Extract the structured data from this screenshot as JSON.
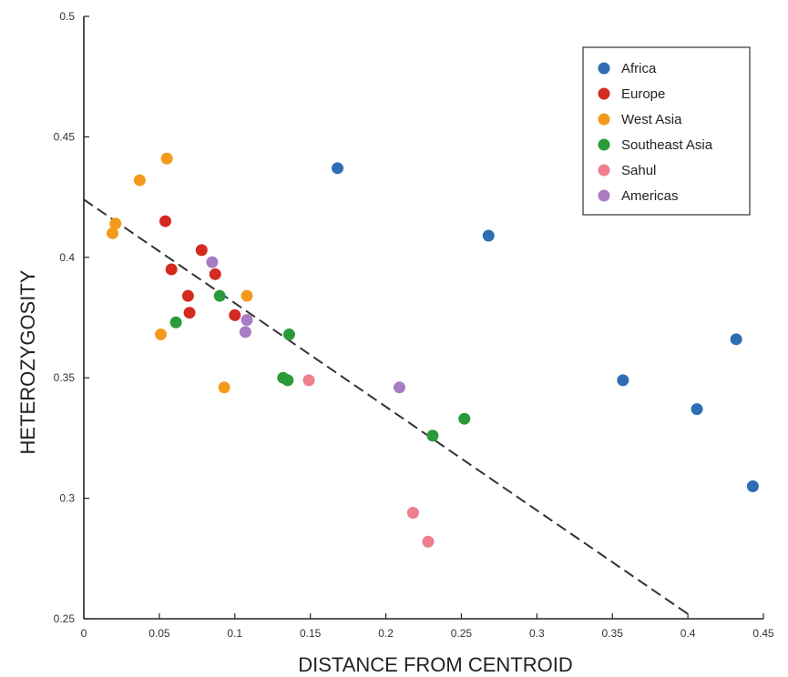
{
  "chart_data": {
    "type": "scatter",
    "xlabel": "DISTANCE FROM CENTROID",
    "ylabel": "HETEROZYGOSITY",
    "xlim": [
      0,
      0.45
    ],
    "ylim": [
      0.25,
      0.5
    ],
    "x_ticks": [
      {
        "value": 0,
        "label": "0"
      },
      {
        "value": 0.05,
        "label": "0.05"
      },
      {
        "value": 0.1,
        "label": "0.1"
      },
      {
        "value": 0.15,
        "label": "0.15"
      },
      {
        "value": 0.2,
        "label": "0.2"
      },
      {
        "value": 0.25,
        "label": "0.25"
      },
      {
        "value": 0.3,
        "label": "0.3"
      },
      {
        "value": 0.35,
        "label": "0.35"
      },
      {
        "value": 0.4,
        "label": "0.4"
      },
      {
        "value": 0.45,
        "label": "0.45"
      }
    ],
    "y_ticks": [
      {
        "value": 0.25,
        "label": "0.25"
      },
      {
        "value": 0.3,
        "label": "0.3"
      },
      {
        "value": 0.35,
        "label": "0.35"
      },
      {
        "value": 0.4,
        "label": "0.4"
      },
      {
        "value": 0.45,
        "label": "0.45"
      },
      {
        "value": 0.5,
        "label": "0.5"
      }
    ],
    "grid": false,
    "legend_position": "top-right",
    "trendline": {
      "style": "dashed",
      "points": [
        [
          0,
          0.424
        ],
        [
          0.4,
          0.252
        ]
      ]
    },
    "series": [
      {
        "name": "Africa",
        "color": "#2e6db4",
        "points": [
          [
            0.168,
            0.437
          ],
          [
            0.268,
            0.409
          ],
          [
            0.357,
            0.349
          ],
          [
            0.406,
            0.337
          ],
          [
            0.432,
            0.366
          ],
          [
            0.443,
            0.305
          ]
        ]
      },
      {
        "name": "Europe",
        "color": "#d42a20",
        "points": [
          [
            0.054,
            0.415
          ],
          [
            0.058,
            0.395
          ],
          [
            0.078,
            0.403
          ],
          [
            0.087,
            0.393
          ],
          [
            0.069,
            0.384
          ],
          [
            0.07,
            0.377
          ],
          [
            0.1,
            0.376
          ]
        ]
      },
      {
        "name": "West Asia",
        "color": "#f39a1c",
        "points": [
          [
            0.055,
            0.441
          ],
          [
            0.037,
            0.432
          ],
          [
            0.021,
            0.414
          ],
          [
            0.019,
            0.41
          ],
          [
            0.108,
            0.384
          ],
          [
            0.051,
            0.368
          ],
          [
            0.093,
            0.346
          ]
        ]
      },
      {
        "name": "Southeast Asia",
        "color": "#2a9a3a",
        "points": [
          [
            0.09,
            0.384
          ],
          [
            0.061,
            0.373
          ],
          [
            0.136,
            0.368
          ],
          [
            0.132,
            0.35
          ],
          [
            0.135,
            0.349
          ],
          [
            0.252,
            0.333
          ],
          [
            0.231,
            0.326
          ]
        ]
      },
      {
        "name": "Sahul",
        "color": "#ef7e8e",
        "points": [
          [
            0.149,
            0.349
          ],
          [
            0.218,
            0.294
          ],
          [
            0.228,
            0.282
          ]
        ]
      },
      {
        "name": "Americas",
        "color": "#a97cc4",
        "points": [
          [
            0.085,
            0.398
          ],
          [
            0.108,
            0.374
          ],
          [
            0.107,
            0.369
          ],
          [
            0.209,
            0.346
          ]
        ]
      }
    ]
  }
}
